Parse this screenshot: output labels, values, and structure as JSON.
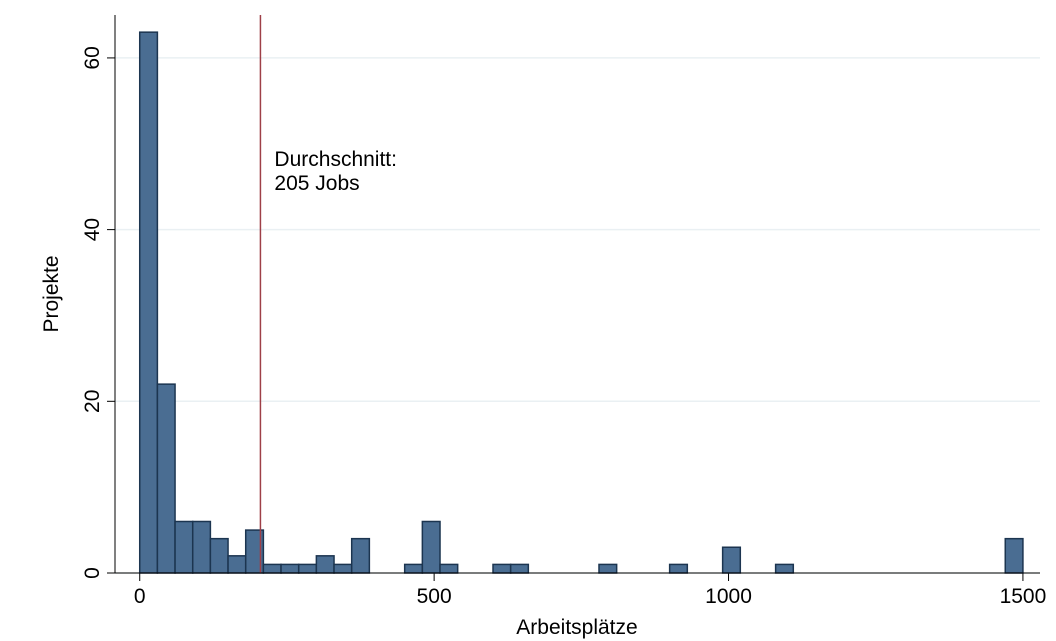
{
  "chart_data": {
    "type": "histogram",
    "xlabel": "Arbeitsplätze",
    "ylabel": "Projekte",
    "bins": [
      0,
      30,
      60,
      90,
      120,
      150,
      180,
      210,
      240,
      270,
      300,
      330,
      360,
      390,
      420,
      450,
      480,
      510,
      540,
      570,
      600,
      630,
      660,
      690,
      720,
      750,
      780,
      810,
      840,
      870,
      900,
      930,
      960,
      990,
      1020,
      1050,
      1080,
      1110,
      1140,
      1170,
      1200,
      1230,
      1260,
      1290,
      1320,
      1350,
      1380,
      1410,
      1440,
      1470,
      1500
    ],
    "counts": [
      63,
      22,
      6,
      6,
      4,
      2,
      5,
      1,
      1,
      1,
      2,
      1,
      4,
      0,
      0,
      1,
      6,
      1,
      0,
      0,
      1,
      1,
      0,
      0,
      0,
      0,
      1,
      0,
      0,
      0,
      1,
      0,
      0,
      3,
      0,
      0,
      1,
      0,
      0,
      0,
      0,
      0,
      0,
      0,
      0,
      0,
      0,
      0,
      0,
      4
    ],
    "color": "#4a6d92",
    "edgecolor": "#1c3550",
    "mean_line": {
      "value": 205,
      "color": "#9e3f47"
    },
    "annotation": [
      "Durchschnitt:",
      "205 Jobs"
    ],
    "xlim": [
      -42,
      1529
    ],
    "ylim": [
      0,
      65
    ],
    "xticks": [
      0,
      500,
      1000,
      1500
    ],
    "yticks": [
      0,
      20,
      40,
      60
    ],
    "grid": true
  }
}
